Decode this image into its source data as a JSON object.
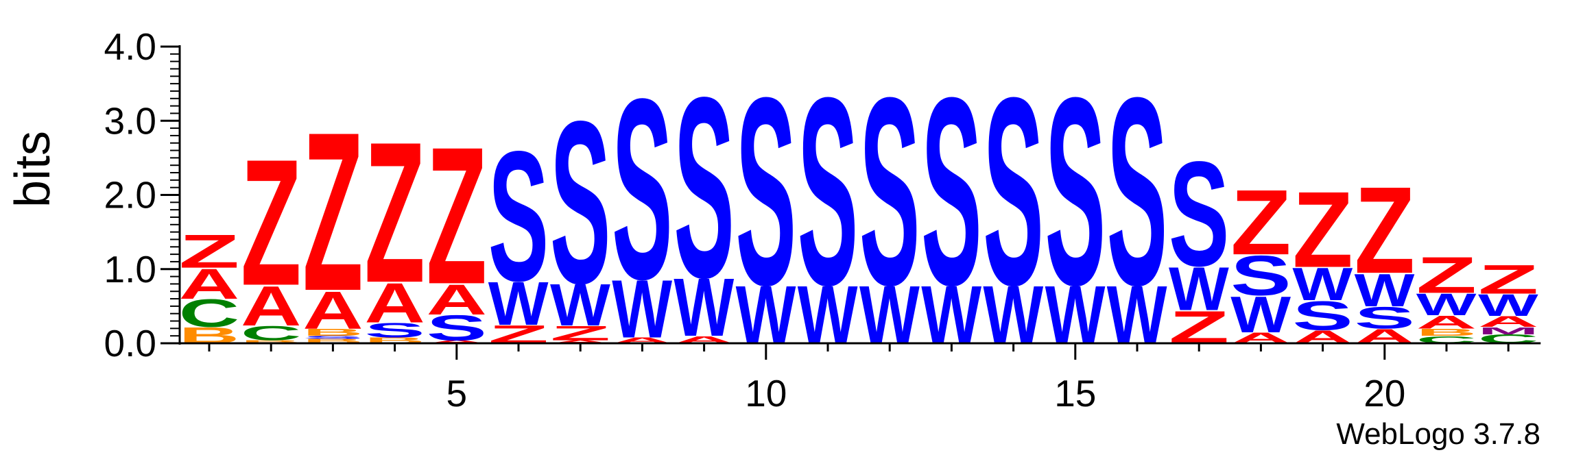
{
  "chart_data": {
    "type": "sequence-logo",
    "ylabel": "bits",
    "ylim": [
      0,
      4
    ],
    "y_ticks": [
      "0.0",
      "1.0",
      "2.0",
      "3.0",
      "4.0"
    ],
    "x_ticks": [
      5,
      10,
      15,
      20
    ],
    "x_tick_labels": [
      "5",
      "10",
      "15",
      "20"
    ],
    "positions": 22,
    "footer": "WebLogo 3.7.8",
    "colors": {
      "Z": "#ff0000",
      "A": "#ff0000",
      "S": "#0000ff",
      "W": "#0000ff",
      "C": "#008000",
      "B": "#ff8c00",
      "M": "#800080"
    },
    "columns": [
      {
        "position": 1,
        "letters": [
          {
            "letter": "B",
            "bits": 0.22
          },
          {
            "letter": "C",
            "bits": 0.38
          },
          {
            "letter": "A",
            "bits": 0.42
          },
          {
            "letter": "Z",
            "bits": 0.46
          }
        ]
      },
      {
        "position": 2,
        "letters": [
          {
            "letter": "B",
            "bits": 0.04
          },
          {
            "letter": "C",
            "bits": 0.2
          },
          {
            "letter": "A",
            "bits": 0.55
          },
          {
            "letter": "Z",
            "bits": 1.75
          }
        ]
      },
      {
        "position": 3,
        "letters": [
          {
            "letter": "B",
            "bits": 0.06
          },
          {
            "letter": "S",
            "bits": 0.04
          },
          {
            "letter": "B",
            "bits": 0.1
          },
          {
            "letter": "A",
            "bits": 0.52
          },
          {
            "letter": "Z",
            "bits": 2.2
          }
        ]
      },
      {
        "position": 4,
        "letters": [
          {
            "letter": "B",
            "bits": 0.08
          },
          {
            "letter": "S",
            "bits": 0.2
          },
          {
            "letter": "A",
            "bits": 0.55
          },
          {
            "letter": "Z",
            "bits": 1.95
          }
        ]
      },
      {
        "position": 5,
        "letters": [
          {
            "letter": "A",
            "bits": 0.04
          },
          {
            "letter": "S",
            "bits": 0.35
          },
          {
            "letter": "A",
            "bits": 0.42
          },
          {
            "letter": "Z",
            "bits": 1.9
          }
        ]
      },
      {
        "position": 6,
        "letters": [
          {
            "letter": "Z",
            "bits": 0.25
          },
          {
            "letter": "W",
            "bits": 0.6
          },
          {
            "letter": "S",
            "bits": 1.8
          }
        ]
      },
      {
        "position": 7,
        "letters": [
          {
            "letter": "A",
            "bits": 0.04
          },
          {
            "letter": "Z",
            "bits": 0.2
          },
          {
            "letter": "W",
            "bits": 0.58
          },
          {
            "letter": "S",
            "bits": 2.25
          }
        ]
      },
      {
        "position": 8,
        "letters": [
          {
            "letter": "A",
            "bits": 0.08
          },
          {
            "letter": "W",
            "bits": 0.8
          },
          {
            "letter": "S",
            "bits": 2.5
          }
        ]
      },
      {
        "position": 9,
        "letters": [
          {
            "letter": "A",
            "bits": 0.1
          },
          {
            "letter": "W",
            "bits": 0.8
          },
          {
            "letter": "S",
            "bits": 2.5
          }
        ]
      },
      {
        "position": 10,
        "letters": [
          {
            "letter": "W",
            "bits": 0.8
          },
          {
            "letter": "S",
            "bits": 2.6
          }
        ]
      },
      {
        "position": 11,
        "letters": [
          {
            "letter": "W",
            "bits": 0.8
          },
          {
            "letter": "S",
            "bits": 2.6
          }
        ]
      },
      {
        "position": 12,
        "letters": [
          {
            "letter": "W",
            "bits": 0.8
          },
          {
            "letter": "S",
            "bits": 2.6
          }
        ]
      },
      {
        "position": 13,
        "letters": [
          {
            "letter": "W",
            "bits": 0.8
          },
          {
            "letter": "S",
            "bits": 2.6
          }
        ]
      },
      {
        "position": 14,
        "letters": [
          {
            "letter": "W",
            "bits": 0.8
          },
          {
            "letter": "S",
            "bits": 2.6
          }
        ]
      },
      {
        "position": 15,
        "letters": [
          {
            "letter": "W",
            "bits": 0.8
          },
          {
            "letter": "S",
            "bits": 2.6
          }
        ]
      },
      {
        "position": 16,
        "letters": [
          {
            "letter": "W",
            "bits": 0.8
          },
          {
            "letter": "S",
            "bits": 2.6
          }
        ]
      },
      {
        "position": 17,
        "letters": [
          {
            "letter": "Z",
            "bits": 0.45
          },
          {
            "letter": "W",
            "bits": 0.6
          },
          {
            "letter": "S",
            "bits": 1.45
          }
        ]
      },
      {
        "position": 18,
        "letters": [
          {
            "letter": "A",
            "bits": 0.15
          },
          {
            "letter": "W",
            "bits": 0.5
          },
          {
            "letter": "S",
            "bits": 0.55
          },
          {
            "letter": "Z",
            "bits": 0.9
          }
        ]
      },
      {
        "position": 19,
        "letters": [
          {
            "letter": "A",
            "bits": 0.18
          },
          {
            "letter": "S",
            "bits": 0.4
          },
          {
            "letter": "W",
            "bits": 0.45
          },
          {
            "letter": "Z",
            "bits": 1.05
          }
        ]
      },
      {
        "position": 20,
        "letters": [
          {
            "letter": "A",
            "bits": 0.2
          },
          {
            "letter": "S",
            "bits": 0.3
          },
          {
            "letter": "W",
            "bits": 0.45
          },
          {
            "letter": "Z",
            "bits": 1.2
          }
        ]
      },
      {
        "position": 21,
        "letters": [
          {
            "letter": "C",
            "bits": 0.1
          },
          {
            "letter": "B",
            "bits": 0.1
          },
          {
            "letter": "A",
            "bits": 0.18
          },
          {
            "letter": "W",
            "bits": 0.3
          },
          {
            "letter": "Z",
            "bits": 0.5
          }
        ]
      },
      {
        "position": 22,
        "letters": [
          {
            "letter": "C",
            "bits": 0.12
          },
          {
            "letter": "M",
            "bits": 0.1
          },
          {
            "letter": "A",
            "bits": 0.15
          },
          {
            "letter": "W",
            "bits": 0.3
          },
          {
            "letter": "Z",
            "bits": 0.4
          }
        ]
      }
    ]
  }
}
